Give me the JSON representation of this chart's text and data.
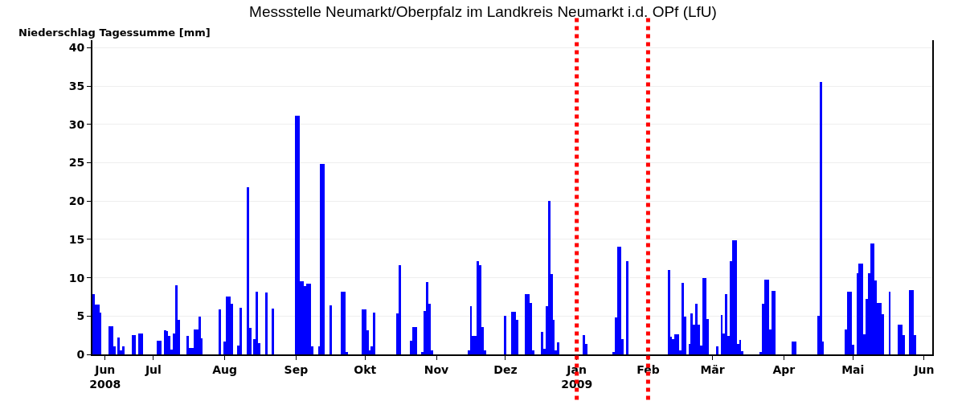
{
  "chart_data": {
    "type": "bar",
    "title": "Messstelle Neumarkt/Oberpfalz im Landkreis Neumarkt i.d. OPf (LfU)",
    "ylabel": "Niederschlag Tagessumme [mm]",
    "x": [
      "2008-06-05",
      "2008-06-06",
      "2008-06-07",
      "2008-06-08",
      "2008-06-12",
      "2008-06-13",
      "2008-06-14",
      "2008-06-16",
      "2008-06-17",
      "2008-06-18",
      "2008-06-22",
      "2008-06-23",
      "2008-06-25",
      "2008-06-26",
      "2008-07-03",
      "2008-07-04",
      "2008-07-06",
      "2008-07-07",
      "2008-07-08",
      "2008-07-09",
      "2008-07-10",
      "2008-07-11",
      "2008-07-12",
      "2008-07-16",
      "2008-07-17",
      "2008-07-18",
      "2008-07-19",
      "2008-07-20",
      "2008-07-21",
      "2008-07-22",
      "2008-07-30",
      "2008-08-01",
      "2008-08-02",
      "2008-08-03",
      "2008-08-04",
      "2008-08-07",
      "2008-08-08",
      "2008-08-11",
      "2008-08-12",
      "2008-08-14",
      "2008-08-15",
      "2008-08-16",
      "2008-08-19",
      "2008-08-22",
      "2008-09-01",
      "2008-09-02",
      "2008-09-03",
      "2008-09-04",
      "2008-09-05",
      "2008-09-06",
      "2008-09-07",
      "2008-09-08",
      "2008-09-11",
      "2008-09-12",
      "2008-09-13",
      "2008-09-16",
      "2008-09-21",
      "2008-09-22",
      "2008-09-23",
      "2008-09-30",
      "2008-10-01",
      "2008-10-02",
      "2008-10-03",
      "2008-10-04",
      "2008-10-05",
      "2008-10-15",
      "2008-10-16",
      "2008-10-21",
      "2008-10-22",
      "2008-10-23",
      "2008-10-26",
      "2008-10-27",
      "2008-10-28",
      "2008-10-29",
      "2008-10-30",
      "2008-11-15",
      "2008-11-16",
      "2008-11-17",
      "2008-11-18",
      "2008-11-19",
      "2008-11-20",
      "2008-11-21",
      "2008-11-22",
      "2008-12-01",
      "2008-12-04",
      "2008-12-05",
      "2008-12-06",
      "2008-12-10",
      "2008-12-11",
      "2008-12-12",
      "2008-12-13",
      "2008-12-17",
      "2008-12-18",
      "2008-12-19",
      "2008-12-20",
      "2008-12-21",
      "2008-12-22",
      "2008-12-23",
      "2008-12-24",
      "2009-01-04",
      "2009-01-05",
      "2009-01-17",
      "2009-01-18",
      "2009-01-19",
      "2009-01-20",
      "2009-01-21",
      "2009-01-23",
      "2009-02-10",
      "2009-02-11",
      "2009-02-12",
      "2009-02-13",
      "2009-02-14",
      "2009-02-15",
      "2009-02-16",
      "2009-02-17",
      "2009-02-19",
      "2009-02-20",
      "2009-02-21",
      "2009-02-22",
      "2009-02-23",
      "2009-02-24",
      "2009-02-25",
      "2009-02-26",
      "2009-02-27",
      "2009-03-03",
      "2009-03-05",
      "2009-03-06",
      "2009-03-07",
      "2009-03-08",
      "2009-03-09",
      "2009-03-10",
      "2009-03-11",
      "2009-03-12",
      "2009-03-13",
      "2009-03-14",
      "2009-03-22",
      "2009-03-23",
      "2009-03-24",
      "2009-03-25",
      "2009-03-26",
      "2009-03-27",
      "2009-03-28",
      "2009-04-05",
      "2009-04-06",
      "2009-04-16",
      "2009-04-17",
      "2009-04-18",
      "2009-04-28",
      "2009-04-29",
      "2009-04-30",
      "2009-05-01",
      "2009-05-03",
      "2009-05-04",
      "2009-05-05",
      "2009-05-06",
      "2009-05-07",
      "2009-05-08",
      "2009-05-09",
      "2009-05-10",
      "2009-05-11",
      "2009-05-12",
      "2009-05-13",
      "2009-05-14",
      "2009-05-17",
      "2009-05-21",
      "2009-05-22",
      "2009-05-23",
      "2009-05-26",
      "2009-05-27",
      "2009-05-28"
    ],
    "values": [
      7.9,
      6.5,
      6.5,
      5.5,
      3.7,
      3.7,
      1.1,
      2.2,
      0.5,
      1.1,
      2.5,
      2.5,
      2.7,
      2.7,
      1.8,
      1.8,
      3.1,
      3.0,
      2.4,
      0.6,
      2.7,
      9.0,
      4.5,
      2.4,
      0.8,
      0.8,
      3.2,
      3.2,
      4.9,
      2.1,
      5.9,
      1.7,
      7.5,
      7.5,
      6.6,
      1.2,
      6.1,
      21.8,
      3.5,
      2.0,
      8.2,
      1.5,
      8.1,
      6.0,
      31.1,
      31.1,
      9.5,
      9.5,
      8.9,
      9.2,
      9.2,
      1.1,
      1.0,
      24.8,
      24.8,
      6.4,
      8.2,
      8.2,
      0.3,
      5.9,
      5.9,
      3.1,
      0.5,
      1.0,
      5.5,
      5.4,
      11.6,
      1.8,
      3.6,
      3.6,
      0.3,
      5.7,
      9.4,
      6.6,
      0.5,
      0.5,
      6.3,
      2.4,
      2.4,
      12.2,
      11.6,
      3.6,
      0.5,
      5.0,
      5.6,
      5.6,
      4.5,
      7.9,
      7.9,
      6.7,
      0.5,
      2.9,
      0.7,
      6.3,
      20.0,
      10.5,
      4.5,
      0.5,
      1.6,
      2.5,
      1.4,
      0.3,
      4.8,
      14.1,
      14.1,
      2.0,
      12.2,
      11.0,
      2.3,
      2.0,
      2.6,
      2.6,
      0.5,
      9.3,
      4.9,
      1.4,
      5.3,
      3.9,
      6.6,
      3.9,
      1.2,
      10.0,
      10.0,
      4.6,
      1.0,
      5.1,
      2.7,
      7.9,
      2.4,
      12.2,
      14.9,
      14.9,
      1.4,
      1.9,
      0.4,
      0.3,
      6.6,
      9.8,
      9.8,
      3.2,
      8.3,
      8.3,
      1.7,
      1.7,
      5.0,
      35.6,
      1.7,
      3.2,
      8.2,
      8.2,
      1.3,
      10.6,
      11.9,
      11.9,
      2.6,
      7.2,
      10.6,
      14.5,
      14.5,
      9.7,
      6.7,
      6.7,
      5.2,
      8.2,
      3.9,
      3.9,
      2.5,
      8.4,
      8.4,
      2.5
    ],
    "color": "#0000ff",
    "xlim": [
      "2008-06-04T12:00",
      "2009-06-04T12:00"
    ],
    "xticks": [
      {
        "value": "2008-06-10",
        "label": "Jun\n2008"
      },
      {
        "value": "2008-07-01",
        "label": "Jul"
      },
      {
        "value": "2008-08-01",
        "label": "Aug"
      },
      {
        "value": "2008-09-01",
        "label": "Sep"
      },
      {
        "value": "2008-10-01",
        "label": "Okt"
      },
      {
        "value": "2008-11-01",
        "label": "Nov"
      },
      {
        "value": "2008-12-01",
        "label": "Dez"
      },
      {
        "value": "2009-01-01",
        "label": "Jan\n2009"
      },
      {
        "value": "2009-02-01",
        "label": "Feb"
      },
      {
        "value": "2009-03-01",
        "label": "Mär"
      },
      {
        "value": "2009-04-01",
        "label": "Apr"
      },
      {
        "value": "2009-05-01",
        "label": "Mai"
      },
      {
        "value": "2009-06-01",
        "label": "Jun"
      }
    ],
    "ylim": [
      0,
      41
    ],
    "yticks": [
      0,
      5,
      10,
      15,
      20,
      25,
      30,
      35,
      40
    ],
    "grid": "y",
    "ref_lines": [
      {
        "axis": "x",
        "value": "2009-01-01",
        "label": null,
        "color": "#ff0000",
        "line_style": "dotted"
      },
      {
        "axis": "x",
        "value": "2009-02-01",
        "label": null,
        "color": "#ff0000",
        "line_style": "dotted"
      }
    ]
  }
}
